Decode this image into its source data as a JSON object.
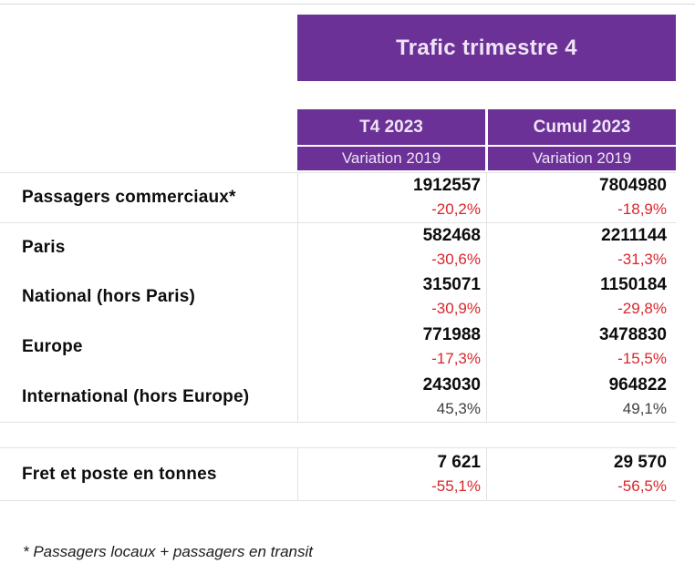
{
  "colors": {
    "purple": "#6C3196",
    "header_text": "#EDE4F5",
    "text": "#0d0d0d",
    "negative": "#D8262C",
    "positive": "#3F3F3F",
    "divider": "#E2E2E2"
  },
  "title": "Trafic trimestre 4",
  "columns": [
    {
      "label": "T4 2023",
      "sublabel": "Variation 2019"
    },
    {
      "label": "Cumul 2023",
      "sublabel": "Variation 2019"
    }
  ],
  "main_rows": [
    {
      "label": "Passagers commerciaux*",
      "cells": [
        {
          "value": "1912557",
          "variation": "-20,2%",
          "negative": true
        },
        {
          "value": "7804980",
          "variation": "-18,9%",
          "negative": true
        }
      ]
    },
    {
      "label": "Paris",
      "cells": [
        {
          "value": "582468",
          "variation": "-30,6%",
          "negative": true
        },
        {
          "value": "2211144",
          "variation": "-31,3%",
          "negative": true
        }
      ]
    },
    {
      "label": "National (hors Paris)",
      "cells": [
        {
          "value": "315071",
          "variation": "-30,9%",
          "negative": true
        },
        {
          "value": "1150184",
          "variation": "-29,8%",
          "negative": true
        }
      ]
    },
    {
      "label": "Europe",
      "cells": [
        {
          "value": "771988",
          "variation": "-17,3%",
          "negative": true
        },
        {
          "value": "3478830",
          "variation": "-15,5%",
          "negative": true
        }
      ]
    },
    {
      "label": "International (hors Europe)",
      "cells": [
        {
          "value": "243030",
          "variation": "45,3%",
          "negative": false
        },
        {
          "value": "964822",
          "variation": "49,1%",
          "negative": false
        }
      ]
    }
  ],
  "fret_row": {
    "label": "Fret et poste en tonnes",
    "cells": [
      {
        "value": "7 621",
        "variation": "-55,1%",
        "negative": true
      },
      {
        "value": "29 570",
        "variation": "-56,5%",
        "negative": true
      }
    ]
  },
  "footnote": "* Passagers locaux + passagers en transit"
}
